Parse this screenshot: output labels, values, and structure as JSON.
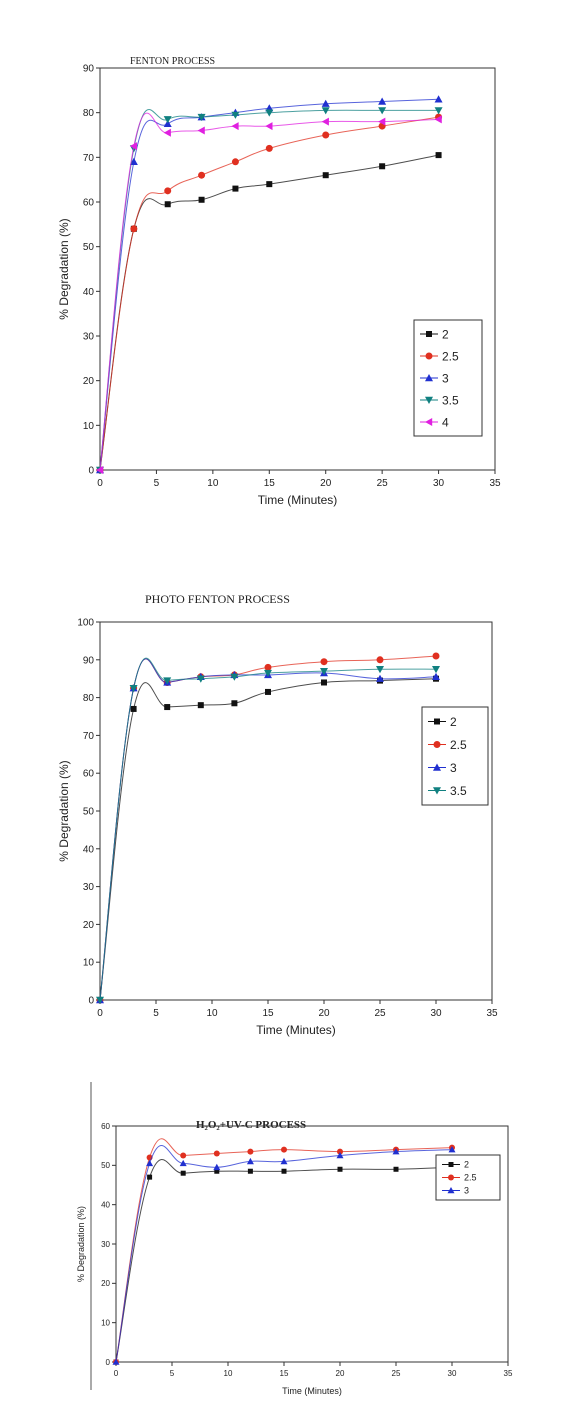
{
  "chart_data": [
    {
      "type": "line",
      "title": "FENTON PROCESS",
      "xlabel": "Time (Minutes)",
      "ylabel": "% Degradation (%)",
      "xlim": [
        0,
        35
      ],
      "ylim": [
        0,
        90
      ],
      "xticks": [
        "0",
        "5",
        "10",
        "15",
        "20",
        "25",
        "30",
        "35"
      ],
      "yticks": [
        "0",
        "10",
        "20",
        "30",
        "40",
        "50",
        "60",
        "70",
        "80",
        "90"
      ],
      "legend": "right",
      "grid": false,
      "series": [
        {
          "name": "2",
          "marker": "square",
          "color": "#111111",
          "x": [
            0,
            3,
            6,
            9,
            12,
            15,
            20,
            25,
            30
          ],
          "y": [
            0,
            54,
            59.5,
            60.5,
            63,
            64,
            66,
            68,
            70.5
          ]
        },
        {
          "name": "2.5",
          "marker": "circle",
          "color": "#e03020",
          "x": [
            0,
            3,
            6,
            9,
            12,
            15,
            20,
            25,
            30
          ],
          "y": [
            0,
            54,
            62.5,
            66,
            69,
            72,
            75,
            77,
            79
          ]
        },
        {
          "name": "3",
          "marker": "triangle-up",
          "color": "#2030d0",
          "x": [
            0,
            3,
            6,
            9,
            12,
            15,
            20,
            25,
            30
          ],
          "y": [
            0,
            69,
            77.5,
            79,
            80,
            81,
            82,
            82.5,
            83
          ]
        },
        {
          "name": "3.5",
          "marker": "triangle-down",
          "color": "#108080",
          "x": [
            0,
            3,
            6,
            9,
            12,
            15,
            20,
            25,
            30
          ],
          "y": [
            0,
            72,
            78.5,
            79,
            79.5,
            80,
            80.5,
            80.5,
            80.5
          ]
        },
        {
          "name": "4",
          "marker": "triangle-left",
          "color": "#e020e0",
          "x": [
            0,
            3,
            6,
            9,
            12,
            15,
            20,
            25,
            30
          ],
          "y": [
            0,
            72.5,
            75.5,
            76,
            77,
            77,
            78,
            78,
            78.5
          ]
        }
      ]
    },
    {
      "type": "line",
      "title": "PHOTO FENTON PROCESS",
      "xlabel": "Time (Minutes)",
      "ylabel": "% Degradation (%)",
      "xlim": [
        0,
        35
      ],
      "ylim": [
        0,
        100
      ],
      "xticks": [
        "0",
        "5",
        "10",
        "15",
        "20",
        "25",
        "30",
        "35"
      ],
      "yticks": [
        "0",
        "10",
        "20",
        "30",
        "40",
        "50",
        "60",
        "70",
        "80",
        "90",
        "100"
      ],
      "legend": "right",
      "grid": false,
      "series": [
        {
          "name": "2",
          "marker": "square",
          "color": "#111111",
          "x": [
            0,
            3,
            6,
            9,
            12,
            15,
            20,
            25,
            30
          ],
          "y": [
            0,
            77,
            77.5,
            78,
            78.5,
            81.5,
            84,
            84.5,
            85
          ]
        },
        {
          "name": "2.5",
          "marker": "circle",
          "color": "#e03020",
          "x": [
            0,
            3,
            6,
            9,
            12,
            15,
            20,
            25,
            30
          ],
          "y": [
            0,
            82.5,
            84,
            85.5,
            86,
            88,
            89.5,
            90,
            91
          ]
        },
        {
          "name": "3",
          "marker": "triangle-up",
          "color": "#2030d0",
          "x": [
            0,
            3,
            6,
            9,
            12,
            15,
            20,
            25,
            30
          ],
          "y": [
            0,
            82.5,
            84,
            85.5,
            86,
            86,
            86.5,
            85,
            85.5
          ]
        },
        {
          "name": "3.5",
          "marker": "triangle-down",
          "color": "#108080",
          "x": [
            0,
            3,
            6,
            9,
            12,
            15,
            20,
            25,
            30
          ],
          "y": [
            0,
            82.5,
            84.5,
            85,
            85.5,
            86.5,
            87,
            87.5,
            87.5
          ]
        }
      ]
    },
    {
      "type": "line",
      "title": "H₂O₂+UV-C PROCESS",
      "xlabel": "Time (Minutes)",
      "ylabel": "% Degradation (%)",
      "xlim": [
        0,
        35
      ],
      "ylim": [
        0,
        60
      ],
      "xticks": [
        "0",
        "5",
        "10",
        "15",
        "20",
        "25",
        "30",
        "35"
      ],
      "yticks": [
        "0",
        "10",
        "20",
        "30",
        "40",
        "50",
        "60"
      ],
      "legend": "right",
      "grid": false,
      "series": [
        {
          "name": "2",
          "marker": "square",
          "color": "#111111",
          "x": [
            0,
            3,
            6,
            9,
            12,
            15,
            20,
            25,
            30
          ],
          "y": [
            0,
            47,
            48,
            48.5,
            48.5,
            48.5,
            49,
            49,
            49.5
          ]
        },
        {
          "name": "2.5",
          "marker": "circle",
          "color": "#e03020",
          "x": [
            0,
            3,
            6,
            9,
            12,
            15,
            20,
            25,
            30
          ],
          "y": [
            0,
            52,
            52.5,
            53,
            53.5,
            54,
            53.5,
            54,
            54.5
          ]
        },
        {
          "name": "3",
          "marker": "triangle-up",
          "color": "#2030d0",
          "x": [
            0,
            3,
            6,
            9,
            12,
            15,
            20,
            25,
            30
          ],
          "y": [
            0,
            50.5,
            50.5,
            49.5,
            51,
            51,
            52.5,
            53.5,
            54
          ]
        }
      ]
    }
  ]
}
